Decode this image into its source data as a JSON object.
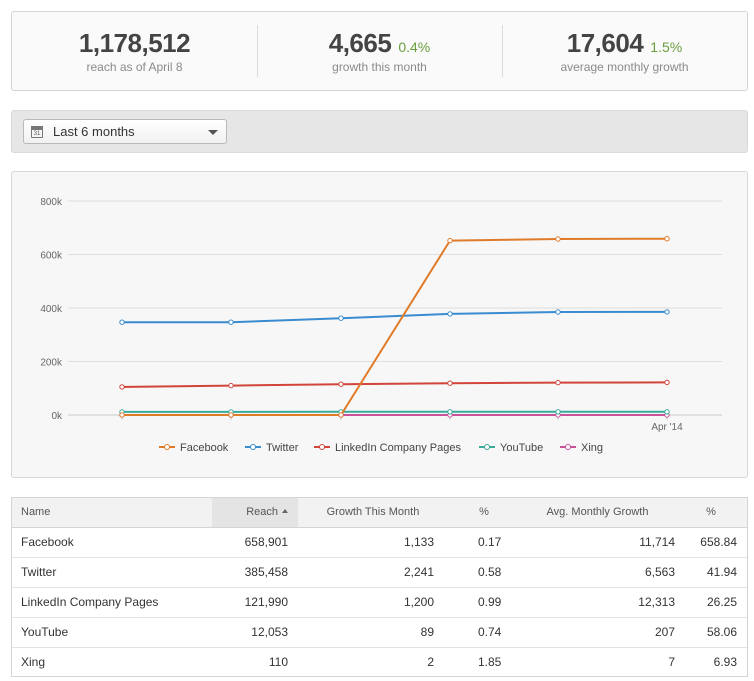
{
  "stats": [
    {
      "value": "1,178,512",
      "pct": "",
      "label": "reach as of April 8"
    },
    {
      "value": "4,665",
      "pct": "0.4%",
      "label": "growth this month"
    },
    {
      "value": "17,604",
      "pct": "1.5%",
      "label": "average monthly growth"
    }
  ],
  "filter": {
    "selected": "Last 6 months",
    "icon": "calendar-icon",
    "icon_text": "31"
  },
  "chart_data": {
    "type": "line",
    "x": [
      "",
      "",
      "",
      "",
      "",
      "Apr '14"
    ],
    "xlabels_shown": [
      "Apr '14"
    ],
    "ylim": [
      0,
      800000
    ],
    "yticks": [
      0,
      200000,
      400000,
      600000,
      800000
    ],
    "ytick_labels": [
      "0k",
      "200k",
      "400k",
      "600k",
      "800k"
    ],
    "grid": true,
    "legend_position": "bottom",
    "series": [
      {
        "name": "Facebook",
        "color": "#e07b2a",
        "values": [
          0,
          0,
          0,
          652000,
          658000,
          658901
        ]
      },
      {
        "name": "Twitter",
        "color": "#3a8cd0",
        "values": [
          347000,
          347000,
          362000,
          378000,
          385000,
          385458
        ]
      },
      {
        "name": "LinkedIn Company Pages",
        "color": "#d2453a",
        "values": [
          105000,
          110000,
          115000,
          119000,
          121000,
          121990
        ]
      },
      {
        "name": "YouTube",
        "color": "#3aab9b",
        "values": [
          11500,
          11600,
          11800,
          11900,
          12000,
          12053
        ]
      },
      {
        "name": "Xing",
        "color": "#c8539a",
        "values": [
          105,
          106,
          107,
          108,
          109,
          110
        ]
      }
    ]
  },
  "table": {
    "headers": {
      "name": "Name",
      "reach": "Reach",
      "growth": "Growth This Month",
      "growth_pct": "%",
      "avg": "Avg. Monthly Growth",
      "avg_pct": "%"
    },
    "rows": [
      {
        "name": "Facebook",
        "reach": "658,901",
        "growth": "1,133",
        "growth_pct": "0.17",
        "avg": "11,714",
        "avg_pct": "658.84"
      },
      {
        "name": "Twitter",
        "reach": "385,458",
        "growth": "2,241",
        "growth_pct": "0.58",
        "avg": "6,563",
        "avg_pct": "41.94"
      },
      {
        "name": "LinkedIn Company Pages",
        "reach": "121,990",
        "growth": "1,200",
        "growth_pct": "0.99",
        "avg": "12,313",
        "avg_pct": "26.25"
      },
      {
        "name": "YouTube",
        "reach": "12,053",
        "growth": "89",
        "growth_pct": "0.74",
        "avg": "207",
        "avg_pct": "58.06"
      },
      {
        "name": "Xing",
        "reach": "110",
        "growth": "2",
        "growth_pct": "1.85",
        "avg": "7",
        "avg_pct": "6.93"
      }
    ]
  }
}
